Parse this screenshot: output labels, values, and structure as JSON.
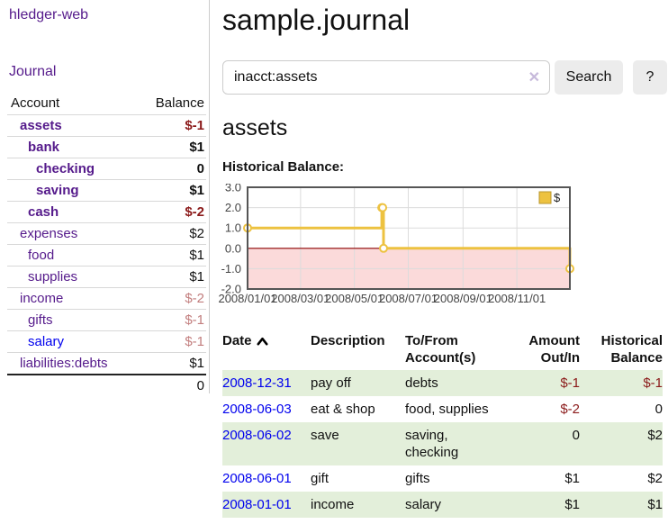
{
  "app": {
    "brand": "hledger-web",
    "nav_journal": "Journal"
  },
  "colors": {
    "link_visited": "#551A8B",
    "link_unvisited": "#0000EE",
    "negative_strong": "#8b1a1a",
    "negative_soft": "#c27e7e",
    "row_stripe_green": "#e3efda",
    "chart_series_gold": "#edc240",
    "chart_negative_region": "#fbdada",
    "chart_zero_line": "#8b0000",
    "button_bg": "#ececec"
  },
  "sidebar": {
    "table": {
      "account_header": "Account",
      "balance_header": "Balance",
      "total": "0"
    },
    "accounts": [
      {
        "name": "assets",
        "level": 0,
        "bold": true,
        "balance": "$-1",
        "balance_style": "neg-strong"
      },
      {
        "name": "bank",
        "level": 1,
        "bold": true,
        "balance": "$1",
        "balance_style": "pos"
      },
      {
        "name": "checking",
        "level": 2,
        "bold": true,
        "balance": "0",
        "balance_style": "pos"
      },
      {
        "name": "saving",
        "level": 2,
        "bold": true,
        "balance": "$1",
        "balance_style": "pos"
      },
      {
        "name": "cash",
        "level": 1,
        "bold": true,
        "balance": "$-2",
        "balance_style": "neg-strong"
      },
      {
        "name": "expenses",
        "level": 0,
        "bold": false,
        "balance": "$2",
        "balance_style": "pos"
      },
      {
        "name": "food",
        "level": 1,
        "bold": false,
        "balance": "$1",
        "balance_style": "pos"
      },
      {
        "name": "supplies",
        "level": 1,
        "bold": false,
        "balance": "$1",
        "balance_style": "pos"
      },
      {
        "name": "income",
        "level": 0,
        "bold": false,
        "balance": "$-2",
        "balance_style": "neg-soft"
      },
      {
        "name": "gifts",
        "level": 1,
        "bold": false,
        "balance": "$-1",
        "balance_style": "neg-soft"
      },
      {
        "name": "salary",
        "level": 1,
        "bold": false,
        "balance": "$-1",
        "balance_style": "neg-soft",
        "link_style": "unvisited"
      },
      {
        "name": "liabilities:debts",
        "level": 0,
        "bold": false,
        "balance": "$1",
        "balance_style": "pos"
      }
    ]
  },
  "main": {
    "title": "sample.journal",
    "search": {
      "value": "inacct:assets",
      "clear_icon": "✕",
      "button": "Search",
      "help_button": "?"
    },
    "section_title": "assets",
    "chart_label": "Historical Balance:"
  },
  "transactions": {
    "headers": [
      "Date",
      "Description",
      "To/From Account(s)",
      "Amount Out/In",
      "Historical Balance"
    ],
    "sort": {
      "column": "Date",
      "direction": "ascending"
    },
    "rows": [
      {
        "date": "2008-12-31",
        "description": "pay off",
        "accounts": "debts",
        "amount": "$-1",
        "amount_negative": true,
        "balance": "$-1",
        "balance_negative": true
      },
      {
        "date": "2008-06-03",
        "description": "eat & shop",
        "accounts": "food, supplies",
        "amount": "$-2",
        "amount_negative": true,
        "balance": "0",
        "balance_negative": false
      },
      {
        "date": "2008-06-02",
        "description": "save",
        "accounts": "saving, checking",
        "amount": "0",
        "amount_negative": false,
        "balance": "$2",
        "balance_negative": false
      },
      {
        "date": "2008-06-01",
        "description": "gift",
        "accounts": "gifts",
        "amount": "$1",
        "amount_negative": false,
        "balance": "$2",
        "balance_negative": false
      },
      {
        "date": "2008-01-01",
        "description": "income",
        "accounts": "salary",
        "amount": "$1",
        "amount_negative": false,
        "balance": "$1",
        "balance_negative": false
      }
    ]
  },
  "chart_data": {
    "type": "line",
    "step": true,
    "title": "Historical Balance:",
    "xlabel": "",
    "ylabel": "",
    "xlim": [
      "2008-01-01",
      "2008-12-31"
    ],
    "ylim": [
      -2,
      3
    ],
    "x_ticks": [
      "2008/01/01",
      "2008/03/01",
      "2008/05/01",
      "2008/07/01",
      "2008/09/01",
      "2008/11/01"
    ],
    "y_ticks": [
      3,
      2,
      1,
      0,
      -1,
      -2
    ],
    "grid": true,
    "legend_position": "top-right",
    "series": [
      {
        "name": "$",
        "color": "#edc240",
        "points": [
          [
            "2008-01-01",
            1
          ],
          [
            "2008-06-01",
            2
          ],
          [
            "2008-06-02",
            2
          ],
          [
            "2008-06-03",
            0
          ],
          [
            "2008-12-31",
            -1
          ]
        ]
      }
    ],
    "negative_region_color": "#fbdada",
    "zero_line_color": "#8b0000"
  }
}
